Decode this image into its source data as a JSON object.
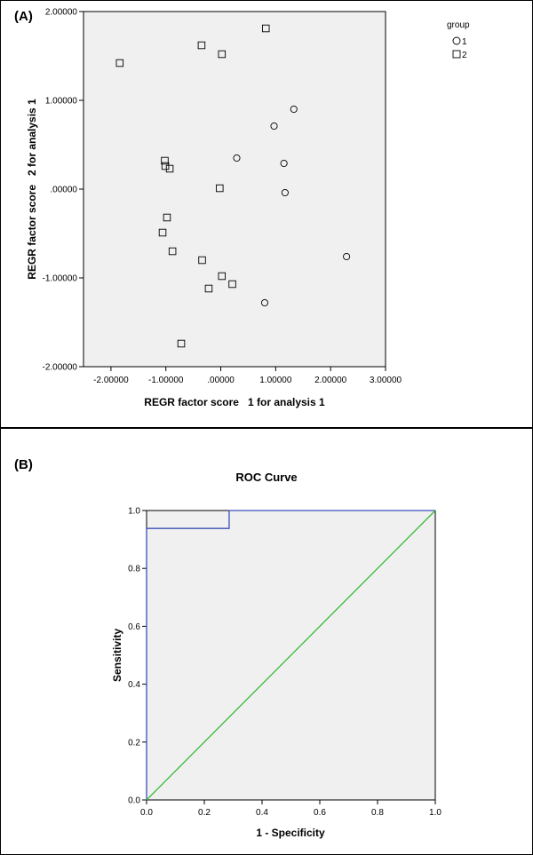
{
  "panels": {
    "a_label": "(A)",
    "b_label": "(B)"
  },
  "chart_data": [
    {
      "type": "scatter",
      "title": "",
      "xlabel": "REGR factor score   1 for analysis 1",
      "ylabel": "REGR factor score   2 for analysis 1",
      "xlim": [
        -2.5,
        3.0
      ],
      "ylim": [
        -2.0,
        2.0
      ],
      "xticks": [
        -2.0,
        -1.0,
        0.0,
        1.0,
        2.0,
        3.0
      ],
      "xtick_labels": [
        "-2.00000",
        "-1.00000",
        ".00000",
        "1.00000",
        "2.00000",
        "3.00000"
      ],
      "yticks": [
        -2.0,
        -1.0,
        0.0,
        1.0,
        2.0
      ],
      "ytick_labels": [
        "-2.00000",
        "-1.00000",
        ".00000",
        "1.00000",
        "2.00000"
      ],
      "grid": false,
      "legend": {
        "title": "group",
        "placement": "outside-top-right",
        "entries": [
          {
            "label": "1",
            "marker": "circle"
          },
          {
            "label": "2",
            "marker": "square"
          }
        ]
      },
      "series": [
        {
          "name": "1",
          "marker": "circle",
          "x": [
            1.33,
            0.97,
            0.29,
            1.15,
            1.17,
            2.29,
            0.8
          ],
          "y": [
            0.9,
            0.71,
            0.35,
            0.29,
            -0.04,
            -0.76,
            -1.28
          ]
        },
        {
          "name": "2",
          "marker": "square",
          "x": [
            0.82,
            -0.35,
            0.02,
            -1.84,
            -1.02,
            -1.01,
            -0.93,
            -0.02,
            -0.98,
            -1.06,
            -0.88,
            -0.34,
            0.02,
            -0.22,
            0.21,
            -0.72
          ],
          "y": [
            1.81,
            1.62,
            1.52,
            1.42,
            0.32,
            0.26,
            0.23,
            0.01,
            -0.32,
            -0.49,
            -0.7,
            -0.8,
            -0.98,
            -1.12,
            -1.07,
            -1.74
          ]
        }
      ]
    },
    {
      "type": "line",
      "title": "ROC Curve",
      "xlabel": "1 - Specificity",
      "ylabel": "Sensitivity",
      "xlim": [
        0.0,
        1.0
      ],
      "ylim": [
        0.0,
        1.0
      ],
      "xticks": [
        0.0,
        0.2,
        0.4,
        0.6,
        0.8,
        1.0
      ],
      "xtick_labels": [
        "0.0",
        "0.2",
        "0.4",
        "0.6",
        "0.8",
        "1.0"
      ],
      "yticks": [
        0.0,
        0.2,
        0.4,
        0.6,
        0.8,
        1.0
      ],
      "ytick_labels": [
        "0.0",
        "0.2",
        "0.4",
        "0.6",
        "0.8",
        "1.0"
      ],
      "grid": false,
      "series": [
        {
          "color": "#3b4fb8",
          "x": [
            0.0,
            0.0,
            0.286,
            0.286,
            1.0
          ],
          "y": [
            0.0,
            0.938,
            0.938,
            1.0,
            1.0
          ]
        },
        {
          "color": "#3aba3a",
          "x": [
            0.0,
            1.0
          ],
          "y": [
            0.0,
            1.0
          ]
        }
      ]
    }
  ]
}
